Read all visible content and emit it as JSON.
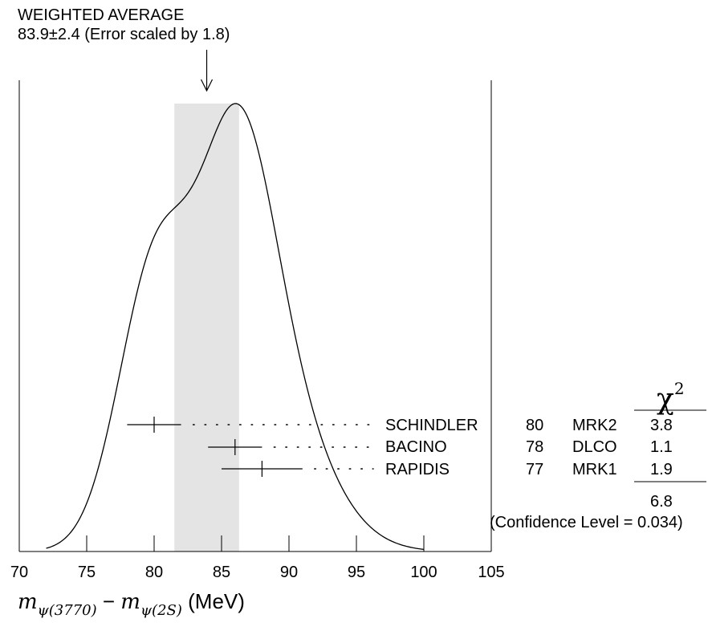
{
  "header": {
    "line1": "WEIGHTED AVERAGE",
    "line2": "83.9±2.4 (Error scaled by 1.8)"
  },
  "chart_data": {
    "type": "ideogram",
    "x_axis": {
      "min": 70,
      "max": 105,
      "ticks": [
        70,
        75,
        80,
        85,
        90,
        95,
        100,
        105
      ],
      "label_parts": {
        "m1": "m",
        "sub1": "ψ(3770)",
        "minus": "−",
        "m2": "m",
        "sub2": "ψ(2S)",
        "unit": "(MeV)"
      }
    },
    "weighted_average": {
      "value": 83.9,
      "error": 2.4,
      "scale_factor": 1.8
    },
    "chi2_header": "χ",
    "chi2_exponent": "2",
    "measurements": [
      {
        "value": 80,
        "error": 2.0,
        "author": "SCHINDLER",
        "year": "80",
        "experiment": "MRK2",
        "chi2": "3.8"
      },
      {
        "value": 86,
        "error": 2.0,
        "author": "BACINO",
        "year": "78",
        "experiment": "DLCO",
        "chi2": "1.1"
      },
      {
        "value": 88,
        "error": 3.0,
        "author": "RAPIDIS",
        "year": "77",
        "experiment": "MRK1",
        "chi2": "1.9"
      }
    ],
    "chi2_total": "6.8",
    "confidence_level": "(Confidence Level = 0.034)"
  },
  "colors": {
    "band": "#e4e4e4",
    "ink": "#000000"
  }
}
